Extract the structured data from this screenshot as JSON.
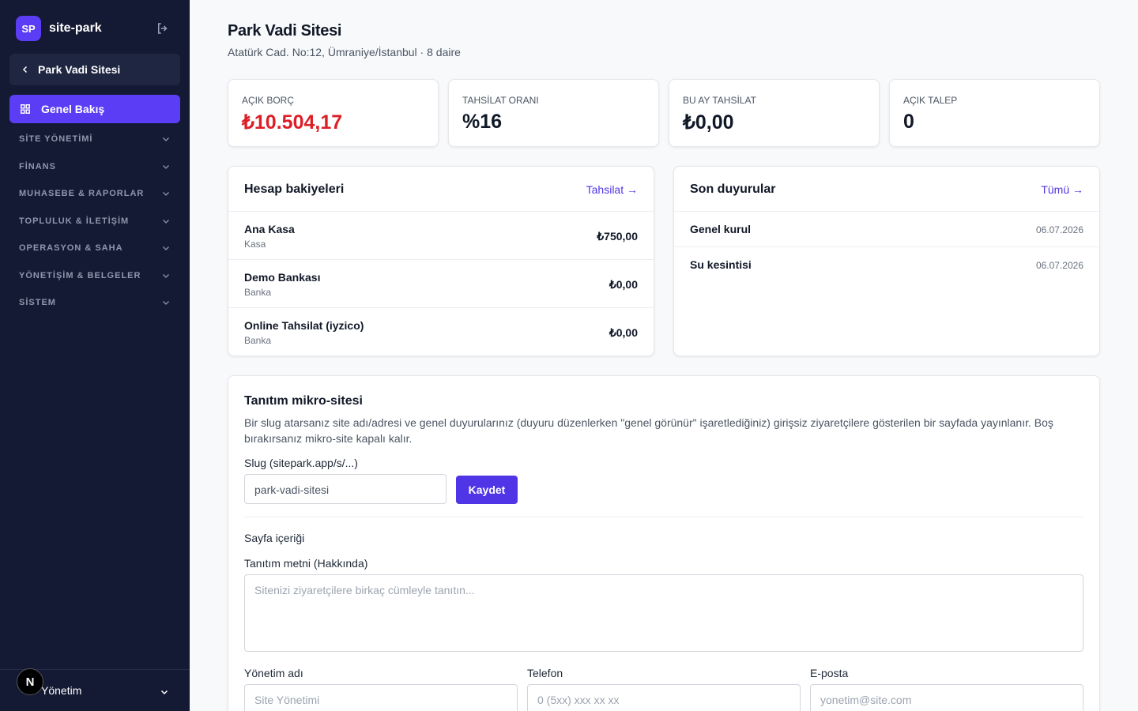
{
  "sidebar": {
    "logo": "SP",
    "brand": "site-park",
    "site": "Park Vadi Sitesi",
    "active": "Genel Bakış",
    "sections": [
      "SİTE YÖNETİMİ",
      "FİNANS",
      "MUHASEBE & RAPORLAR",
      "TOPLULUK & İLETİŞİM",
      "OPERASYON & SAHA",
      "YÖNETİŞİM & BELGELER",
      "SİSTEM"
    ],
    "avatar": "N",
    "user": "Yönetim"
  },
  "header": {
    "title": "Park Vadi Sitesi",
    "subtitle": "Atatürk Cad. No:12, Ümraniye/İstanbul · 8 daire"
  },
  "stats": [
    {
      "label": "AÇIK BORÇ",
      "value": "₺10.504,17"
    },
    {
      "label": "TAHSİLAT ORANI",
      "value": "%16"
    },
    {
      "label": "BU AY TAHSİLAT",
      "value": "₺0,00"
    },
    {
      "label": "AÇIK TALEP",
      "value": "0"
    }
  ],
  "balances": {
    "title": "Hesap bakiyeleri",
    "link": "Tahsilat →",
    "rows": [
      {
        "name": "Ana Kasa",
        "type": "Kasa",
        "amount": "₺750,00"
      },
      {
        "name": "Demo Bankası",
        "type": "Banka",
        "amount": "₺0,00"
      },
      {
        "name": "Online Tahsilat (iyzico)",
        "type": "Banka",
        "amount": "₺0,00"
      }
    ]
  },
  "announcements": {
    "title": "Son duyurular",
    "link": "Tümü →",
    "rows": [
      {
        "title": "Genel kurul",
        "date": "06.07.2026"
      },
      {
        "title": "Su kesintisi",
        "date": "06.07.2026"
      }
    ]
  },
  "microsite": {
    "title": "Tanıtım mikro-sitesi",
    "description": "Bir slug atarsanız site adı/adresi ve genel duyurularınız (duyuru düzenlerken \"genel görünür\" işaretlediğiniz) girişsiz ziyaretçilere gösterilen bir sayfada yayınlanır. Boş bırakırsanız mikro-site kapalı kalır.",
    "slug_label": "Slug (sitepark.app/s/...)",
    "slug_value": "park-vadi-sitesi",
    "save": "Kaydet",
    "content_heading": "Sayfa içeriği",
    "about_label": "Tanıtım metni (Hakkında)",
    "about_placeholder": "Sitenizi ziyaretçilere birkaç cümleyle tanıtın...",
    "fields": [
      {
        "label": "Yönetim adı",
        "placeholder": "Site Yönetimi"
      },
      {
        "label": "Telefon",
        "placeholder": "0 (5xx) xxx xx xx"
      },
      {
        "label": "E-posta",
        "placeholder": "yonetim@site.com"
      }
    ]
  }
}
